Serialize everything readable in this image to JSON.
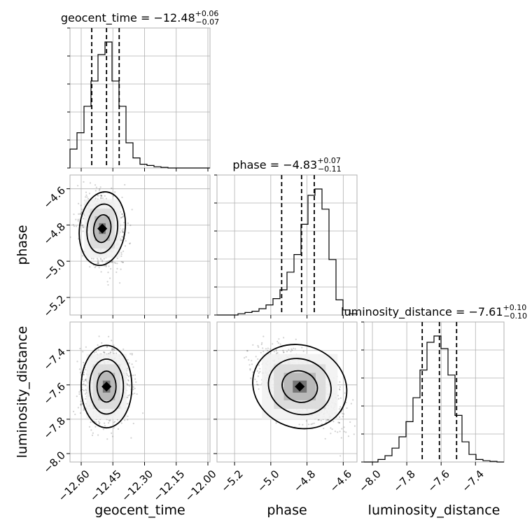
{
  "chart_data": {
    "type": "corner",
    "parameters": [
      "geocent_time",
      "phase",
      "luminosity_distance"
    ],
    "titles": [
      {
        "param": "geocent_time",
        "label": "geocent_time = ",
        "median": "−12.48",
        "plus": "+0.06",
        "minus": "−0.07"
      },
      {
        "param": "phase",
        "label": "phase = ",
        "median": "−4.83",
        "plus": "+0.07",
        "minus": "−0.11"
      },
      {
        "param": "luminosity_distance",
        "label": "luminosity_distance = ",
        "median": "−7.61",
        "plus": "+0.10",
        "minus": "−0.10"
      }
    ],
    "ranges": {
      "geocent_time": [
        -12.653,
        -11.99
      ],
      "phase": [
        -5.297,
        -4.524
      ],
      "luminosity_distance": [
        -8.049,
        -7.234
      ]
    },
    "ticks": {
      "geocent_time": {
        "values": [
          -12.6,
          -12.45,
          -12.3,
          -12.15,
          -12.0
        ],
        "labels": [
          "−12.60",
          "−12.45",
          "−12.30",
          "−12.15",
          "−12.00"
        ]
      },
      "phase": {
        "values": [
          -5.2,
          -5.0,
          -4.8,
          -4.6
        ],
        "labels": [
          "−5.2",
          "−5.0",
          "−4.8",
          "−4.6"
        ]
      },
      "luminosity_distance": {
        "values": [
          -8.0,
          -7.8,
          -7.6,
          -7.4
        ],
        "labels": [
          "−8.0",
          "−7.8",
          "−7.6",
          "−7.4"
        ]
      }
    },
    "quantiles": {
      "geocent_time": [
        -12.55,
        -12.48,
        -12.42
      ],
      "phase": [
        -4.94,
        -4.83,
        -4.76
      ],
      "luminosity_distance": [
        -7.71,
        -7.61,
        -7.51
      ]
    },
    "histograms": {
      "geocent_time": [
        0.15,
        0.28,
        0.49,
        0.69,
        0.9,
        1.0,
        0.69,
        0.49,
        0.2,
        0.08,
        0.03,
        0.02,
        0.01,
        0.005,
        0,
        0,
        0,
        0,
        0,
        0
      ],
      "phase": [
        0,
        0,
        0,
        0.01,
        0.02,
        0.03,
        0.05,
        0.08,
        0.13,
        0.2,
        0.34,
        0.48,
        0.72,
        0.95,
        1.0,
        0.84,
        0.44,
        0.12,
        0.04,
        0.01
      ],
      "luminosity_distance": [
        0,
        0,
        0.02,
        0.05,
        0.11,
        0.2,
        0.32,
        0.51,
        0.73,
        0.95,
        1.0,
        0.9,
        0.69,
        0.37,
        0.16,
        0.06,
        0.02,
        0.01,
        0.005,
        0
      ]
    },
    "density": {
      "phase_vs_geocent_time": {
        "center": [
          -12.5,
          -4.82
        ],
        "sd": [
          0.045,
          0.085
        ],
        "rho": -0.2
      },
      "luminosity_distance_vs_geocent_time": {
        "center": [
          -12.48,
          -7.61
        ],
        "sd": [
          0.05,
          0.1
        ],
        "rho": 0.0
      },
      "luminosity_distance_vs_phase": {
        "center": [
          -4.84,
          -7.61
        ],
        "sd": [
          0.11,
          0.1
        ],
        "rho": -0.6
      }
    },
    "axis_labels": {
      "x": [
        "geocent_time",
        "phase",
        "luminosity_distance"
      ],
      "y": [
        "phase",
        "luminosity_distance"
      ]
    },
    "grid": true
  }
}
